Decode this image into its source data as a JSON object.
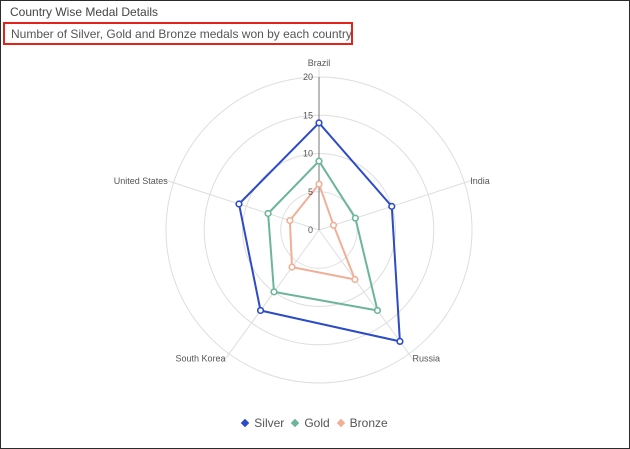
{
  "chart_data": {
    "type": "radar",
    "title": "Country Wise Medal Details",
    "subtitle": "Number of Silver, Gold and Bronze medals won by each country",
    "categories": [
      "Brazil",
      "India",
      "Russia",
      "South Korea",
      "United States"
    ],
    "ylim": [
      0,
      20
    ],
    "yticks": [
      "0",
      "5",
      "10",
      "15",
      "20"
    ],
    "grid": true,
    "legend_position": "bottom",
    "series": [
      {
        "name": "Silver",
        "color": "#2c4bc6",
        "values": [
          14,
          10,
          18,
          13,
          11
        ]
      },
      {
        "name": "Gold",
        "color": "#6cb59a",
        "values": [
          9,
          5,
          13,
          10,
          7
        ]
      },
      {
        "name": "Bronze",
        "color": "#f0b096",
        "values": [
          6,
          2,
          8,
          6,
          4
        ]
      }
    ]
  }
}
